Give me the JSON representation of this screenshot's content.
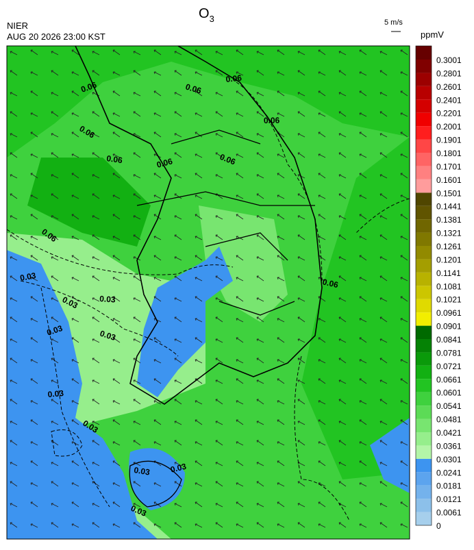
{
  "header": {
    "title": "O",
    "title_subscript": "3",
    "agency": "NIER",
    "timestamp": "AUG 20 2026 23:00 KST",
    "wind_reference": "5 m/s"
  },
  "colorbar": {
    "unit": "ppmV",
    "levels": [
      0,
      0.0061,
      0.0121,
      0.0181,
      0.0241,
      0.0301,
      0.0361,
      0.0421,
      0.0481,
      0.0541,
      0.0601,
      0.0661,
      0.0721,
      0.0781,
      0.0841,
      0.0901,
      0.0961,
      0.1021,
      0.1081,
      0.1141,
      0.1201,
      0.1261,
      0.1321,
      0.1381,
      0.1441,
      0.1501,
      0.1601,
      0.1701,
      0.1801,
      0.1901,
      0.2001,
      0.2201,
      0.2401,
      0.2601,
      0.2801,
      0.3001
    ],
    "colors": [
      "#a6cfec",
      "#8cc0ea",
      "#74b2ec",
      "#5ca4ee",
      "#3d94f0",
      "#b4f5a8",
      "#96ee8c",
      "#78e570",
      "#5cdb56",
      "#3fd13e",
      "#22c422",
      "#12b012",
      "#0a9a0a",
      "#058205",
      "#006a00",
      "#f2ee00",
      "#e0da00",
      "#ccc600",
      "#b8b200",
      "#a49e00",
      "#928a00",
      "#807800",
      "#706600",
      "#605400",
      "#504600",
      "#ff9c9c",
      "#ff8080",
      "#ff6464",
      "#ff4646",
      "#ff1e1e",
      "#f00000",
      "#d40000",
      "#b80000",
      "#9c0000",
      "#800000",
      "#660000"
    ]
  },
  "contour_labels": [
    "0.06",
    "0.06",
    "0.06",
    "0.06",
    "0.06",
    "0.06",
    "0.06",
    "0.06",
    "0.06",
    "0.06",
    "0.03",
    "0.03",
    "0.03",
    "0.03",
    "0.03",
    "0.03",
    "0.03",
    "0.03",
    "0.03",
    "0.03"
  ]
}
